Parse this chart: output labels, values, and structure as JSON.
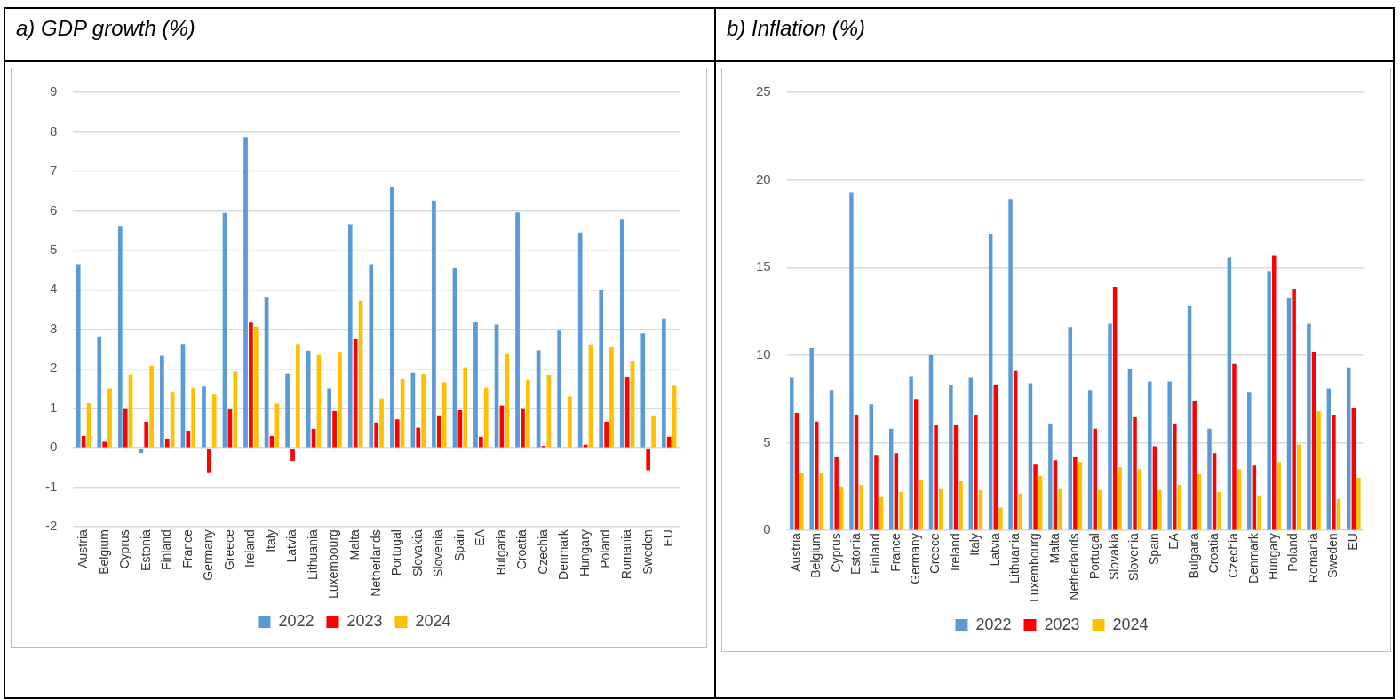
{
  "chart_data": [
    {
      "type": "bar",
      "title": "a) GDP growth (%)",
      "categories": [
        "Austria",
        "Belgium",
        "Cyprus",
        "Estonia",
        "Finland",
        "France",
        "Germany",
        "Greece",
        "Ireland",
        "Italy",
        "Latvia",
        "Lithuania",
        "Luxembourg",
        "Malta",
        "Netherlands",
        "Portugal",
        "Slovakia",
        "Slovenia",
        "Spain",
        "EA",
        "Bulgaria",
        "Croatia",
        "Czechia",
        "Denmark",
        "Hungary",
        "Poland",
        "Romania",
        "Sweden",
        "EU"
      ],
      "series": [
        {
          "name": "2022",
          "color": "#5b9bd5",
          "values": [
            4.65,
            2.82,
            5.6,
            -0.13,
            2.33,
            2.63,
            1.55,
            5.95,
            7.87,
            3.83,
            1.88,
            2.46,
            1.5,
            5.66,
            4.65,
            6.6,
            1.9,
            6.26,
            4.55,
            3.2,
            3.12,
            5.96,
            2.47,
            2.97,
            5.45,
            4.0,
            5.78,
            2.9,
            3.27
          ]
        },
        {
          "name": "2023",
          "color": "#ff0000",
          "values": [
            0.3,
            0.15,
            1.0,
            0.66,
            0.23,
            0.43,
            -0.62,
            0.97,
            3.17,
            0.3,
            -0.33,
            0.48,
            0.93,
            2.75,
            0.64,
            0.72,
            0.51,
            0.82,
            0.95,
            0.28,
            1.07,
            1.0,
            0.05,
            0,
            0.08,
            0.66,
            1.78,
            -0.57,
            0.28
          ]
        },
        {
          "name": "2024",
          "color": "#ffc000",
          "values": [
            1.13,
            1.5,
            1.86,
            2.08,
            1.43,
            1.52,
            1.35,
            1.93,
            3.07,
            1.12,
            2.63,
            2.35,
            2.43,
            3.72,
            1.25,
            1.74,
            1.87,
            1.66,
            2.04,
            1.52,
            2.37,
            1.72,
            1.85,
            1.3,
            2.62,
            2.55,
            2.2,
            0.82,
            1.57
          ]
        }
      ],
      "ylim": [
        -2,
        9
      ],
      "yticks": [
        -2,
        -1,
        0,
        1,
        2,
        3,
        4,
        5,
        6,
        7,
        8,
        9
      ],
      "grid": "y",
      "legend": "bottom"
    },
    {
      "type": "bar",
      "title": "b) Inflation (%)",
      "categories": [
        "Austria",
        "Belgium",
        "Cyprus",
        "Estonia",
        "Finland",
        "France",
        "Germany",
        "Greece",
        "Ireland",
        "Italy",
        "Latvia",
        "Lithuania",
        "Luxembourg",
        "Malta",
        "Netherlands",
        "Portugal",
        "Slovakia",
        "Slovenia",
        "Spain",
        "EA",
        "Bulgaira",
        "Croatia",
        "Czechia",
        "Denmark",
        "Hungary",
        "Poland",
        "Romania",
        "Sweden",
        "EU"
      ],
      "series": [
        {
          "name": "2022",
          "color": "#5b9bd5",
          "values": [
            8.7,
            10.4,
            8.0,
            19.3,
            7.2,
            5.8,
            8.8,
            10.0,
            8.3,
            8.7,
            16.9,
            18.9,
            8.4,
            6.1,
            11.6,
            8.0,
            11.8,
            9.2,
            8.5,
            8.5,
            12.8,
            5.8,
            15.6,
            7.9,
            14.8,
            13.3,
            11.8,
            8.1,
            9.3
          ]
        },
        {
          "name": "2023",
          "color": "#ff0000",
          "values": [
            6.7,
            6.2,
            4.2,
            6.6,
            4.3,
            4.4,
            7.5,
            6.0,
            6.0,
            6.6,
            8.3,
            9.1,
            3.8,
            4.0,
            4.2,
            5.8,
            13.9,
            6.5,
            4.8,
            6.1,
            7.4,
            4.4,
            9.5,
            3.7,
            15.7,
            13.8,
            10.2,
            6.6,
            7.0
          ]
        },
        {
          "name": "2024",
          "color": "#ffc000",
          "values": [
            3.3,
            3.3,
            2.5,
            2.6,
            1.9,
            2.2,
            2.9,
            2.4,
            2.8,
            2.3,
            1.3,
            2.1,
            3.1,
            2.4,
            3.9,
            2.3,
            3.6,
            3.5,
            2.3,
            2.6,
            3.2,
            2.2,
            3.5,
            2.0,
            3.9,
            4.9,
            6.8,
            1.8,
            3.0
          ]
        }
      ],
      "ylim": [
        0,
        25
      ],
      "yticks": [
        0,
        5,
        10,
        15,
        20,
        25
      ],
      "grid": "y",
      "legend": "bottom"
    }
  ]
}
